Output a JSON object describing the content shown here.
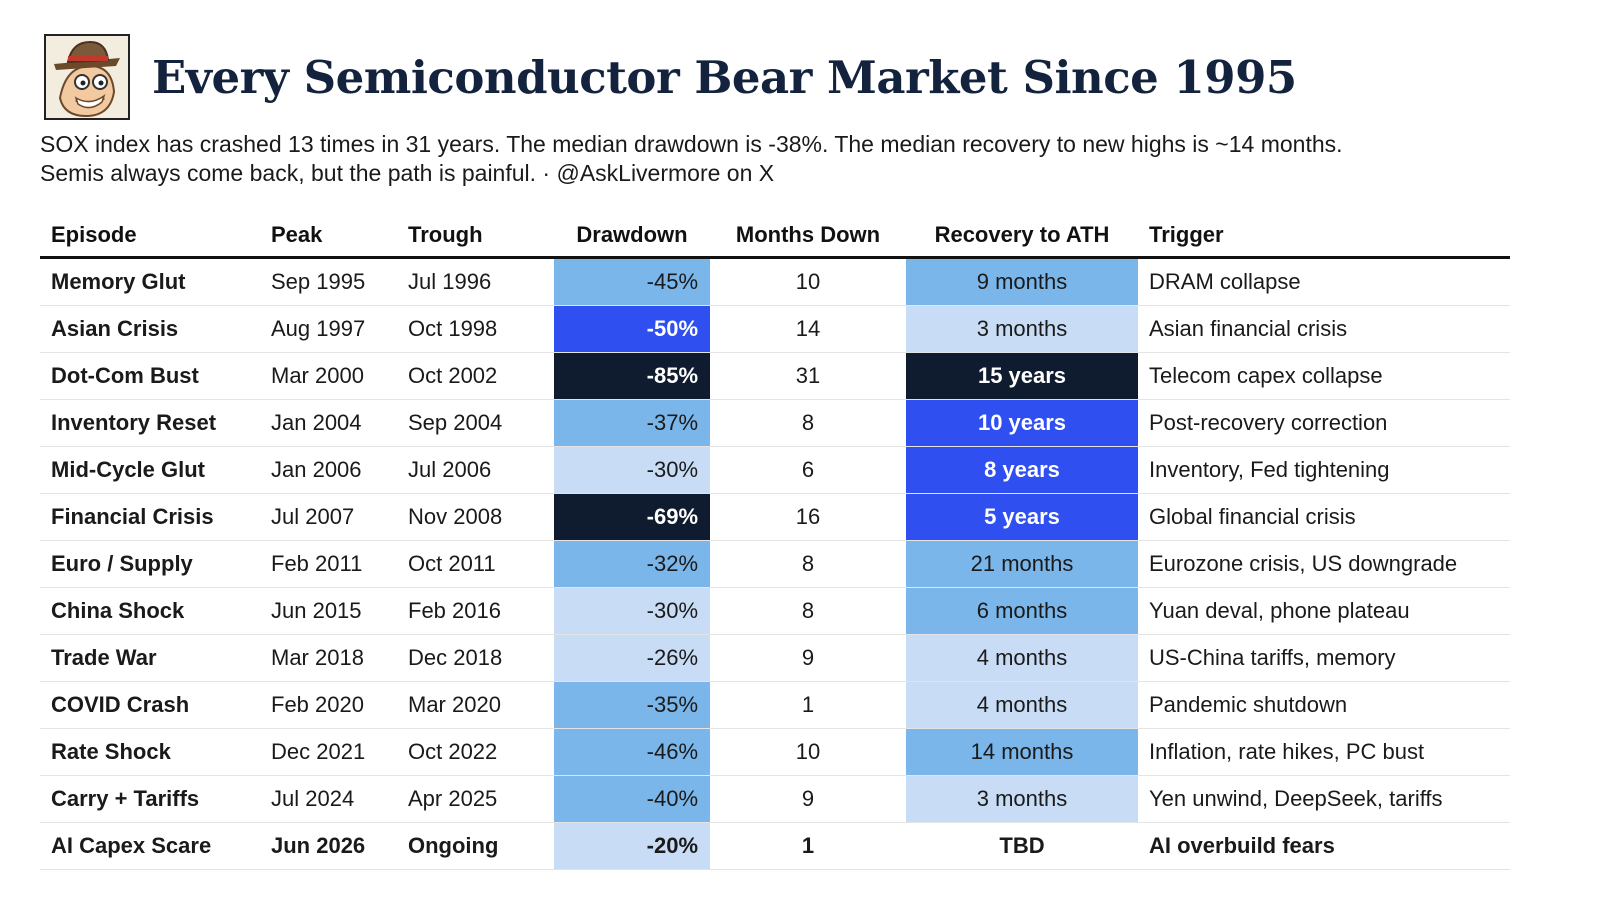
{
  "header": {
    "title": "Every Semiconductor Bear Market Since 1995",
    "subtitle_line1": "SOX index has crashed 13 times in 31 years. The median drawdown is -38%. The median recovery to new highs is ~14 months.",
    "subtitle_line2": "Semis always come back, but the path is painful. · @AskLivermore on X",
    "logo_icon": "detective-cartoon-icon"
  },
  "colors": {
    "very_light": "#c8dcf5",
    "light": "#7ab6ea",
    "blue": "#2f4ff0",
    "dark": "#0f1b2e"
  },
  "chart_data": {
    "type": "table",
    "columns": [
      "Episode",
      "Peak",
      "Trough",
      "Drawdown",
      "Months Down",
      "Recovery to ATH",
      "Trigger"
    ],
    "rows": [
      {
        "episode": "Memory Glut",
        "peak": "Sep 1995",
        "trough": "Jul 1996",
        "drawdown": "-45%",
        "months_down": "10",
        "recovery": "9 months",
        "trigger": "DRAM collapse",
        "dd_shade": "light",
        "rc_shade": "light"
      },
      {
        "episode": "Asian Crisis",
        "peak": "Aug 1997",
        "trough": "Oct 1998",
        "drawdown": "-50%",
        "months_down": "14",
        "recovery": "3 months",
        "trigger": "Asian financial crisis",
        "dd_shade": "blue",
        "rc_shade": "very_light"
      },
      {
        "episode": "Dot-Com Bust",
        "peak": "Mar 2000",
        "trough": "Oct 2002",
        "drawdown": "-85%",
        "months_down": "31",
        "recovery": "15 years",
        "trigger": "Telecom capex collapse",
        "dd_shade": "dark",
        "rc_shade": "dark"
      },
      {
        "episode": "Inventory Reset",
        "peak": "Jan 2004",
        "trough": "Sep 2004",
        "drawdown": "-37%",
        "months_down": "8",
        "recovery": "10 years",
        "trigger": "Post-recovery correction",
        "dd_shade": "light",
        "rc_shade": "blue"
      },
      {
        "episode": "Mid-Cycle Glut",
        "peak": "Jan 2006",
        "trough": "Jul 2006",
        "drawdown": "-30%",
        "months_down": "6",
        "recovery": "8 years",
        "trigger": "Inventory, Fed tightening",
        "dd_shade": "very_light",
        "rc_shade": "blue"
      },
      {
        "episode": "Financial Crisis",
        "peak": "Jul 2007",
        "trough": "Nov 2008",
        "drawdown": "-69%",
        "months_down": "16",
        "recovery": "5 years",
        "trigger": "Global financial crisis",
        "dd_shade": "dark",
        "rc_shade": "blue"
      },
      {
        "episode": "Euro / Supply",
        "peak": "Feb 2011",
        "trough": "Oct 2011",
        "drawdown": "-32%",
        "months_down": "8",
        "recovery": "21 months",
        "trigger": "Eurozone crisis, US downgrade",
        "dd_shade": "light",
        "rc_shade": "light"
      },
      {
        "episode": "China Shock",
        "peak": "Jun 2015",
        "trough": "Feb 2016",
        "drawdown": "-30%",
        "months_down": "8",
        "recovery": "6 months",
        "trigger": "Yuan deval, phone plateau",
        "dd_shade": "very_light",
        "rc_shade": "light"
      },
      {
        "episode": "Trade War",
        "peak": "Mar 2018",
        "trough": "Dec 2018",
        "drawdown": "-26%",
        "months_down": "9",
        "recovery": "4 months",
        "trigger": "US-China tariffs, memory",
        "dd_shade": "very_light",
        "rc_shade": "very_light"
      },
      {
        "episode": "COVID Crash",
        "peak": "Feb 2020",
        "trough": "Mar 2020",
        "drawdown": "-35%",
        "months_down": "1",
        "recovery": "4 months",
        "trigger": "Pandemic shutdown",
        "dd_shade": "light",
        "rc_shade": "very_light"
      },
      {
        "episode": "Rate Shock",
        "peak": "Dec 2021",
        "trough": "Oct 2022",
        "drawdown": "-46%",
        "months_down": "10",
        "recovery": "14 months",
        "trigger": "Inflation, rate hikes, PC bust",
        "dd_shade": "light",
        "rc_shade": "light"
      },
      {
        "episode": "Carry + Tariffs",
        "peak": "Jul 2024",
        "trough": "Apr 2025",
        "drawdown": "-40%",
        "months_down": "9",
        "recovery": "3 months",
        "trigger": "Yen unwind, DeepSeek, tariffs",
        "dd_shade": "light",
        "rc_shade": "very_light"
      },
      {
        "episode": "AI Capex Scare",
        "peak": "Jun 2026",
        "trough": "Ongoing",
        "drawdown": "-20%",
        "months_down": "1",
        "recovery": "TBD",
        "trigger": "AI overbuild fears",
        "dd_shade": "very_light",
        "rc_shade": "none",
        "bold": true
      }
    ]
  }
}
